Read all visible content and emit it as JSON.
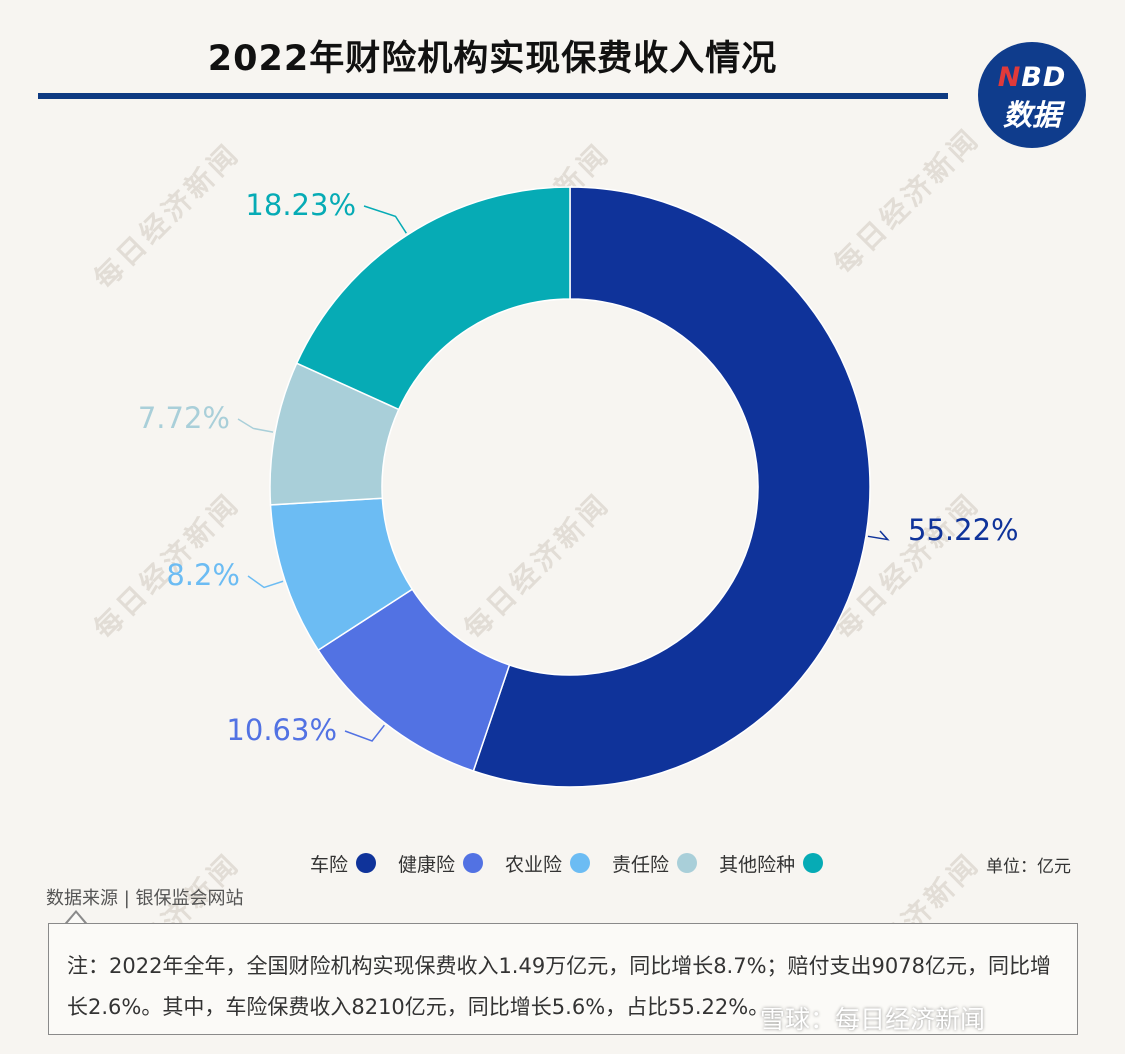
{
  "title": "2022年财险机构实现保费收入情况",
  "logo": {
    "top_n": "N",
    "top_rest": "BD",
    "bottom": "数据"
  },
  "watermark_text": "每日经济新闻",
  "chart_data": {
    "type": "pie",
    "style": "donut",
    "title": "2022年财险机构实现保费收入情况",
    "unit": "单位：亿元",
    "slices": [
      {
        "name": "车险",
        "value": 55.22,
        "label": "55.22%",
        "color": "#0f339a"
      },
      {
        "name": "健康险",
        "value": 10.63,
        "label": "10.63%",
        "color": "#5272e3"
      },
      {
        "name": "农业险",
        "value": 8.2,
        "label": "8.2%",
        "color": "#6cbcf3"
      },
      {
        "name": "责任险",
        "value": 7.72,
        "label": "7.72%",
        "color": "#a9cfd9"
      },
      {
        "name": "其他险种",
        "value": 18.23,
        "label": "18.23%",
        "color": "#06abb5"
      }
    ]
  },
  "source": "数据来源 | 银保监会网站",
  "note": "注：2022年全年，全国财险机构实现保费收入1.49万亿元，同比增长8.7%；赔付支出9078亿元，同比增长2.6%。其中，车险保费收入8210亿元，同比增长5.6%，占比55.22%。",
  "footer_mark": "雪球：每日经济新闻"
}
